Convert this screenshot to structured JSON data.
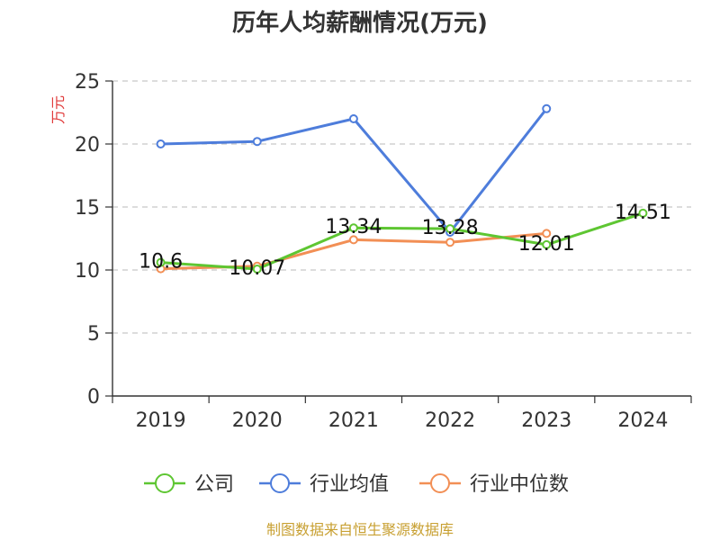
{
  "chart_data": {
    "type": "line",
    "title": "历年人均薪酬情况(万元)",
    "ylabel": "万元",
    "xlabel": "",
    "categories": [
      "2019",
      "2020",
      "2021",
      "2022",
      "2023",
      "2024"
    ],
    "ylim": [
      0,
      25
    ],
    "yticks": [
      0,
      5,
      10,
      15,
      20,
      25
    ],
    "grid": true,
    "legend_position": "bottom",
    "series": [
      {
        "name": "公司",
        "color": "#5ec632",
        "values": [
          10.6,
          10.07,
          13.34,
          13.28,
          12.01,
          14.51
        ],
        "labels": [
          "10.6",
          "10.07",
          "13.34",
          "13.28",
          "12.01",
          "14.51"
        ]
      },
      {
        "name": "行业均值",
        "color": "#4e7ddb",
        "values": [
          20.0,
          20.2,
          22.0,
          13.0,
          22.8,
          null
        ]
      },
      {
        "name": "行业中位数",
        "color": "#f28f55",
        "values": [
          10.1,
          10.3,
          12.4,
          12.2,
          12.9,
          null
        ]
      }
    ]
  },
  "source": "制图数据来自恒生聚源数据库"
}
